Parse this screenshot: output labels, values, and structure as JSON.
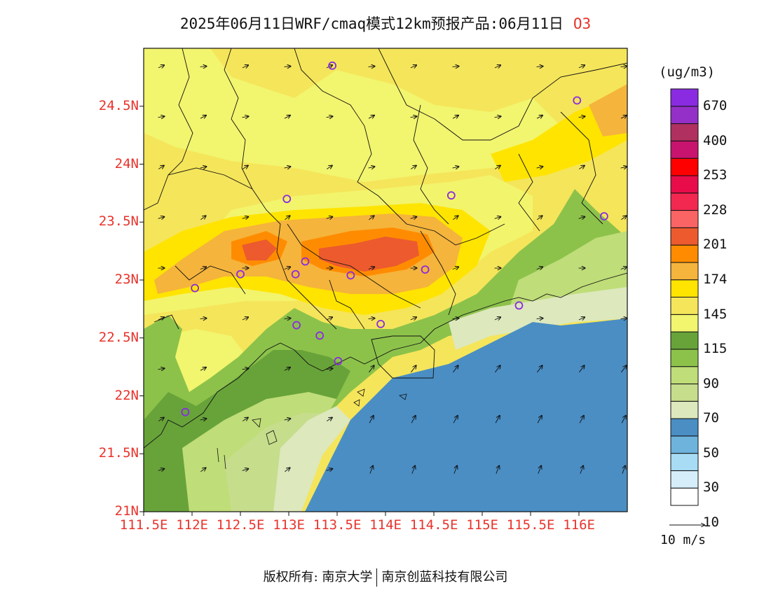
{
  "title": {
    "main": "2025年06月11日WRF/cmaq模式12km预报产品:06月11日",
    "species": "O3"
  },
  "axes": {
    "lat_labels": [
      "24.5N",
      "24N",
      "23.5N",
      "23N",
      "22.5N",
      "22N",
      "21.5N",
      "21N"
    ],
    "lon_labels": [
      "111.5E",
      "112E",
      "112.5E",
      "113E",
      "113.5E",
      "114E",
      "114.5E",
      "115E",
      "115.5E",
      "116E"
    ],
    "lat_range": [
      21.0,
      25.0
    ],
    "lon_range": [
      111.5,
      116.5
    ]
  },
  "colorbar": {
    "unit": "(ug/m3)",
    "bins": [
      {
        "color": "#ffffff"
      },
      {
        "color": "#d6eefa"
      },
      {
        "color": "#a8dcf5"
      },
      {
        "color": "#6eb3dc"
      },
      {
        "color": "#4a8ec4"
      },
      {
        "color": "#dde8bd"
      },
      {
        "color": "#c6dd8c"
      },
      {
        "color": "#bfdd78"
      },
      {
        "color": "#8cc24a"
      },
      {
        "color": "#68a33a"
      },
      {
        "color": "#f2f56e"
      },
      {
        "color": "#f5e55a"
      },
      {
        "color": "#ffe400"
      },
      {
        "color": "#f5b43c"
      },
      {
        "color": "#ff8c00"
      },
      {
        "color": "#ec5a2e"
      },
      {
        "color": "#fa6464"
      },
      {
        "color": "#f22850"
      },
      {
        "color": "#e80c4a"
      },
      {
        "color": "#ff0000"
      },
      {
        "color": "#c8146e"
      },
      {
        "color": "#b03060"
      },
      {
        "color": "#9430c8"
      },
      {
        "color": "#8a2be2"
      }
    ],
    "labels": [
      "670",
      "400",
      "253",
      "228",
      "201",
      "174",
      "145",
      "115",
      "90",
      "70",
      "50",
      "30",
      "10"
    ]
  },
  "wind_reference": "10 m/s",
  "footer": {
    "left": "版权所有: 南京大学",
    "right": "南京创蓝科技有限公司"
  },
  "stations": [
    {
      "lon": 113.45,
      "lat": 24.85
    },
    {
      "lon": 115.98,
      "lat": 24.55
    },
    {
      "lon": 112.98,
      "lat": 23.7
    },
    {
      "lon": 114.68,
      "lat": 23.73
    },
    {
      "lon": 116.26,
      "lat": 23.55
    },
    {
      "lon": 112.5,
      "lat": 23.05
    },
    {
      "lon": 112.03,
      "lat": 22.93
    },
    {
      "lon": 113.07,
      "lat": 23.05
    },
    {
      "lon": 113.17,
      "lat": 23.16
    },
    {
      "lon": 113.64,
      "lat": 23.04
    },
    {
      "lon": 114.41,
      "lat": 23.09
    },
    {
      "lon": 113.08,
      "lat": 22.61
    },
    {
      "lon": 113.32,
      "lat": 22.52
    },
    {
      "lon": 113.95,
      "lat": 22.62
    },
    {
      "lon": 113.51,
      "lat": 22.3
    },
    {
      "lon": 115.38,
      "lat": 22.78
    },
    {
      "lon": 111.93,
      "lat": 21.86
    }
  ]
}
